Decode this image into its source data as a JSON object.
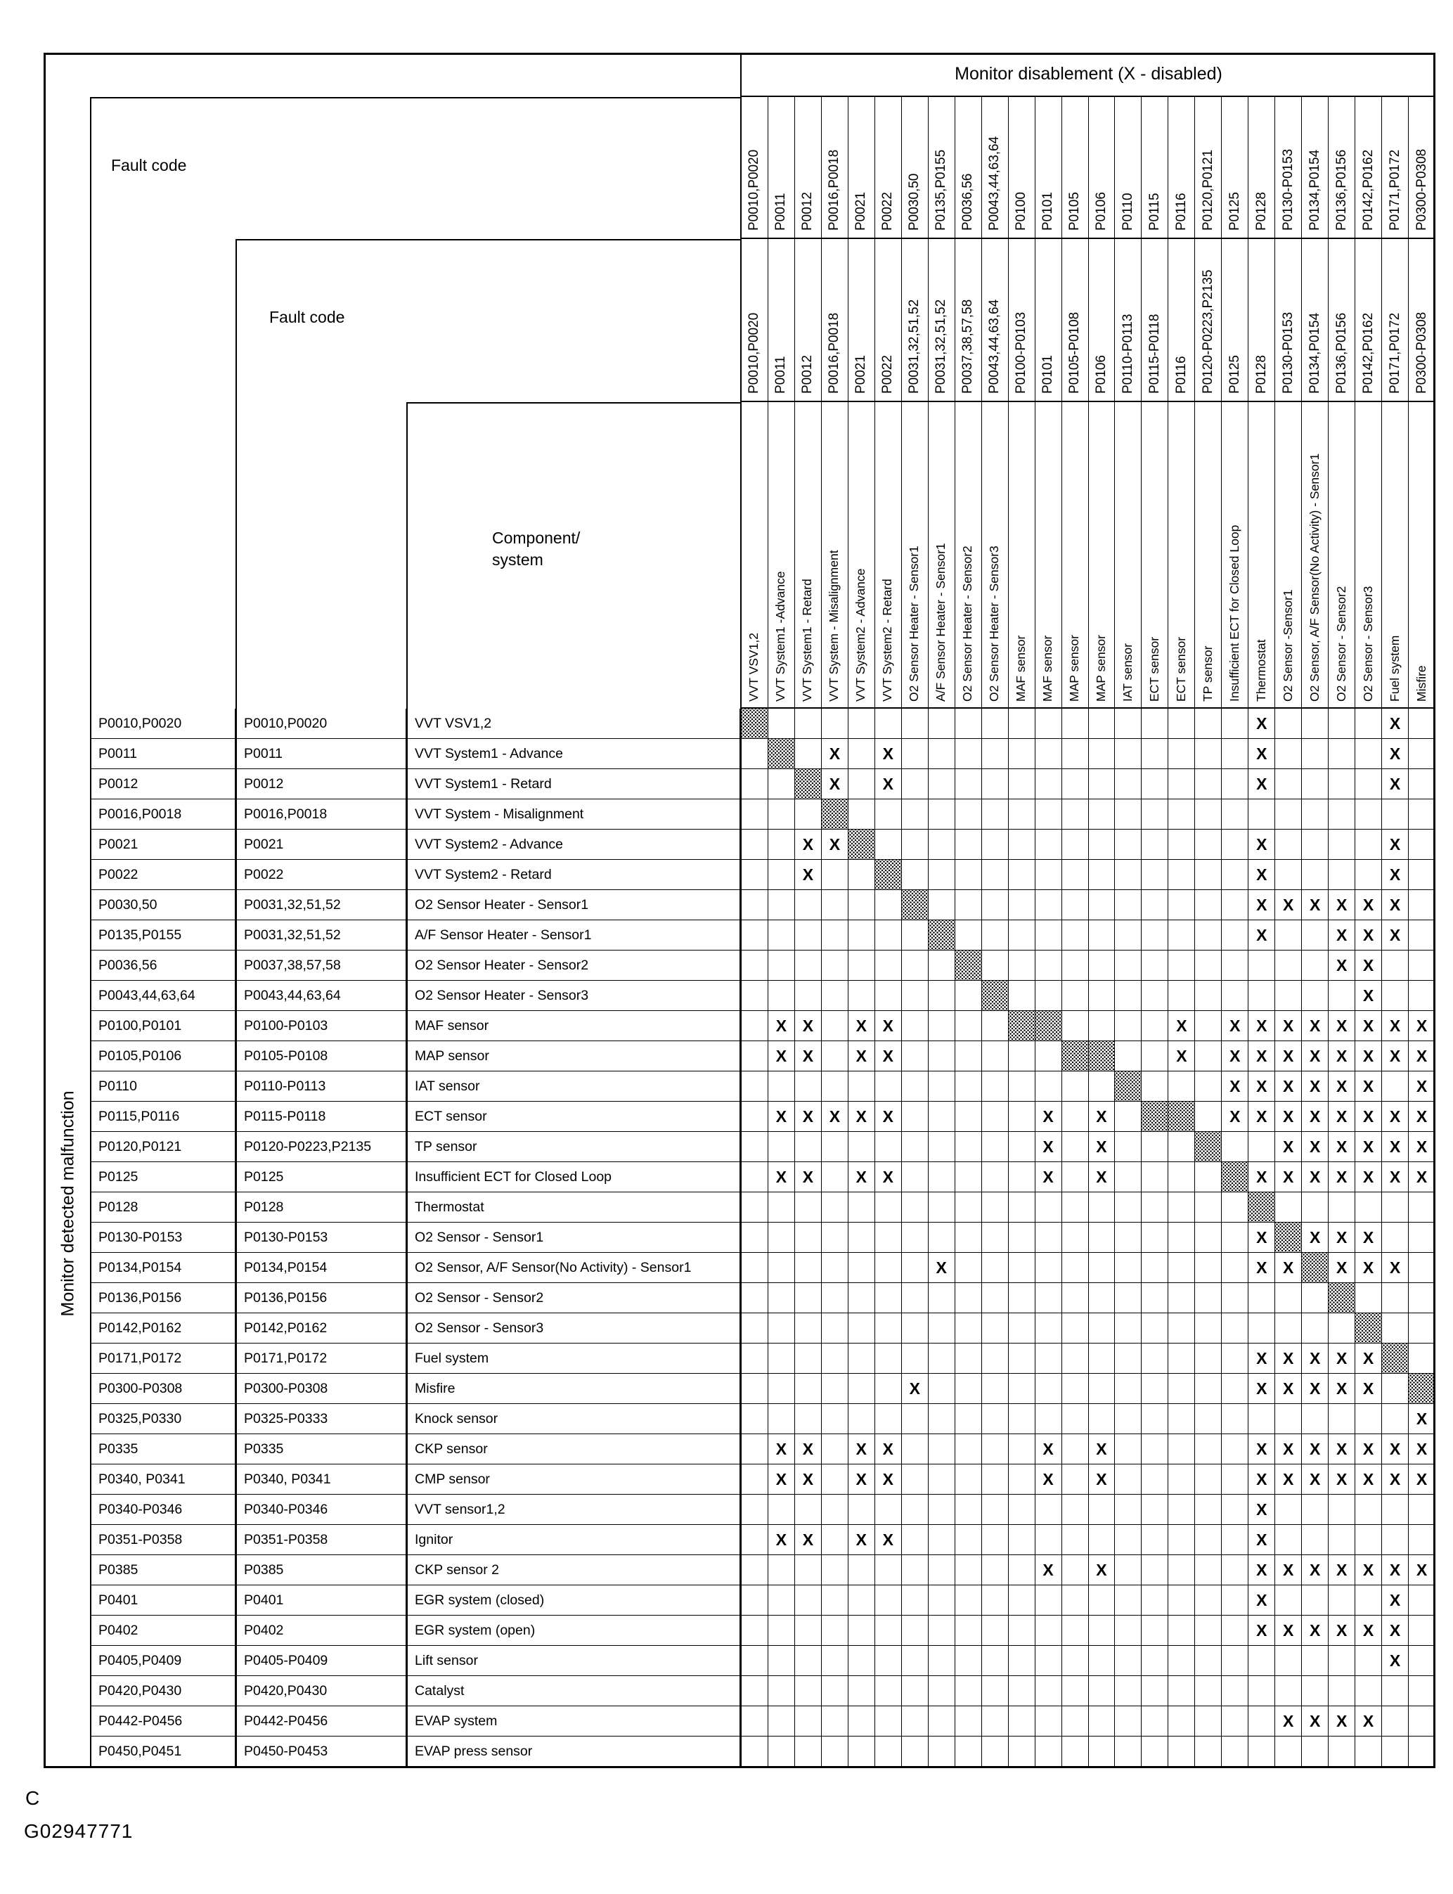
{
  "title": "Monitor disablement (X - disabled)",
  "x_symbol": "X",
  "left_header": {
    "row_axis_label": "Monitor detected malfunction",
    "col1_label": "Fault code",
    "col2_label": "Fault code",
    "col3_label_line1": "Component/",
    "col3_label_line2": "system"
  },
  "footer": {
    "page_letter": "C",
    "figure_code": "G02947771"
  },
  "columns": [
    {
      "code1": "P0010,P0020",
      "code2": "P0010,P0020",
      "component": "VVT VSV1,2"
    },
    {
      "code1": "P0011",
      "code2": "P0011",
      "component": "VVT System1 -Advance"
    },
    {
      "code1": "P0012",
      "code2": "P0012",
      "component": "VVT System1 - Retard"
    },
    {
      "code1": "P0016,P0018",
      "code2": "P0016,P0018",
      "component": "VVT System - Misalignment"
    },
    {
      "code1": "P0021",
      "code2": "P0021",
      "component": "VVT System2 - Advance"
    },
    {
      "code1": "P0022",
      "code2": "P0022",
      "component": "VVT System2 - Retard"
    },
    {
      "code1": "P0030,50",
      "code2": "P0031,32,51,52",
      "component": "O2 Sensor  Heater - Sensor1"
    },
    {
      "code1": "P0135,P0155",
      "code2": "P0031,32,51,52",
      "component": "A/F Sensor Heater - Sensor1"
    },
    {
      "code1": "P0036,56",
      "code2": "P0037,38,57,58",
      "component": "O2 Sensor Heater - Sensor2"
    },
    {
      "code1": "P0043,44,63,64",
      "code2": "P0043,44,63,64",
      "component": "O2 Sensor Heater  - Sensor3"
    },
    {
      "code1": "P0100",
      "code2": "P0100-P0103",
      "component": "MAF sensor"
    },
    {
      "code1": "P0101",
      "code2": "P0101",
      "component": "MAF sensor"
    },
    {
      "code1": "P0105",
      "code2": "P0105-P0108",
      "component": "MAP sensor"
    },
    {
      "code1": "P0106",
      "code2": "P0106",
      "component": "MAP sensor"
    },
    {
      "code1": "P0110",
      "code2": "P0110-P0113",
      "component": "IAT sensor"
    },
    {
      "code1": "P0115",
      "code2": "P0115-P0118",
      "component": "ECT sensor"
    },
    {
      "code1": "P0116",
      "code2": "P0116",
      "component": "ECT sensor"
    },
    {
      "code1": "P0120,P0121",
      "code2": "P0120-P0223,P2135",
      "component": "TP sensor"
    },
    {
      "code1": "P0125",
      "code2": "P0125",
      "component": "Insufficient ECT for Closed Loop"
    },
    {
      "code1": "P0128",
      "code2": "P0128",
      "component": "Thermostat"
    },
    {
      "code1": "P0130-P0153",
      "code2": "P0130-P0153",
      "component": "O2 Sensor -Sensor1"
    },
    {
      "code1": "P0134,P0154",
      "code2": "P0134,P0154",
      "component": "O2 Sensor, A/F Sensor(No Activity) - Sensor1"
    },
    {
      "code1": "P0136,P0156",
      "code2": "P0136,P0156",
      "component": "O2 Sensor - Sensor2"
    },
    {
      "code1": "P0142,P0162",
      "code2": "P0142,P0162",
      "component": "O2 Sensor  - Sensor3"
    },
    {
      "code1": "P0171,P0172",
      "code2": "P0171,P0172",
      "component": "Fuel system"
    },
    {
      "code1": "P0300-P0308",
      "code2": "P0300-P0308",
      "component": "Misfire"
    }
  ],
  "rows": [
    {
      "code1": "P0010,P0020",
      "code2": "P0010,P0020",
      "component": "VVT VSV1,2",
      "disabled_cols": [
        20,
        25
      ],
      "self_cols": [
        1
      ]
    },
    {
      "code1": "P0011",
      "code2": "P0011",
      "component": "VVT System1 - Advance",
      "disabled_cols": [
        4,
        6,
        20,
        25
      ],
      "self_cols": [
        2
      ]
    },
    {
      "code1": "P0012",
      "code2": "P0012",
      "component": "VVT System1 - Retard",
      "disabled_cols": [
        4,
        6,
        20,
        25
      ],
      "self_cols": [
        3
      ]
    },
    {
      "code1": "P0016,P0018",
      "code2": "P0016,P0018",
      "component": "VVT System - Misalignment",
      "disabled_cols": [],
      "self_cols": [
        4
      ]
    },
    {
      "code1": "P0021",
      "code2": "P0021",
      "component": "VVT System2 - Advance",
      "disabled_cols": [
        3,
        4,
        20,
        25
      ],
      "self_cols": [
        5
      ]
    },
    {
      "code1": "P0022",
      "code2": "P0022",
      "component": "VVT System2 - Retard",
      "disabled_cols": [
        3,
        20,
        25
      ],
      "self_cols": [
        6
      ]
    },
    {
      "code1": "P0030,50",
      "code2": "P0031,32,51,52",
      "component": "O2 Sensor Heater - Sensor1",
      "disabled_cols": [
        20,
        21,
        22,
        23,
        24,
        25
      ],
      "self_cols": [
        7
      ]
    },
    {
      "code1": "P0135,P0155",
      "code2": "P0031,32,51,52",
      "component": "A/F Sensor Heater  - Sensor1",
      "disabled_cols": [
        20,
        23,
        24,
        25
      ],
      "self_cols": [
        8
      ]
    },
    {
      "code1": "P0036,56",
      "code2": "P0037,38,57,58",
      "component": "O2 Sensor Heater - Sensor2",
      "disabled_cols": [
        23,
        24
      ],
      "self_cols": [
        9
      ]
    },
    {
      "code1": "P0043,44,63,64",
      "code2": "P0043,44,63,64",
      "component": "O2 Sensor Heater - Sensor3",
      "disabled_cols": [
        24
      ],
      "self_cols": [
        10
      ]
    },
    {
      "code1": "P0100,P0101",
      "code2": "P0100-P0103",
      "component": "MAF sensor",
      "disabled_cols": [
        2,
        3,
        5,
        6,
        17,
        19,
        20,
        21,
        22,
        23,
        24,
        25,
        26
      ],
      "self_cols": [
        11,
        12
      ]
    },
    {
      "code1": "P0105,P0106",
      "code2": "P0105-P0108",
      "component": "MAP sensor",
      "disabled_cols": [
        2,
        3,
        5,
        6,
        17,
        19,
        20,
        21,
        22,
        23,
        24,
        25,
        26
      ],
      "self_cols": [
        13,
        14
      ]
    },
    {
      "code1": "P0110",
      "code2": "P0110-P0113",
      "component": "IAT sensor",
      "disabled_cols": [
        19,
        20,
        21,
        22,
        23,
        24,
        26
      ],
      "self_cols": [
        15
      ]
    },
    {
      "code1": "P0115,P0116",
      "code2": "P0115-P0118",
      "component": "ECT sensor",
      "disabled_cols": [
        2,
        3,
        4,
        5,
        6,
        12,
        14,
        19,
        20,
        21,
        22,
        23,
        24,
        25,
        26
      ],
      "self_cols": [
        16,
        17
      ]
    },
    {
      "code1": "P0120,P0121",
      "code2": "P0120-P0223,P2135",
      "component": "TP sensor",
      "disabled_cols": [
        12,
        14,
        21,
        22,
        23,
        24,
        25,
        26
      ],
      "self_cols": [
        18
      ]
    },
    {
      "code1": "P0125",
      "code2": "P0125",
      "component": "Insufficient ECT for Closed Loop",
      "disabled_cols": [
        2,
        3,
        5,
        6,
        12,
        14,
        20,
        21,
        22,
        23,
        24,
        25,
        26
      ],
      "self_cols": [
        19
      ]
    },
    {
      "code1": "P0128",
      "code2": "P0128",
      "component": "Thermostat",
      "disabled_cols": [],
      "self_cols": [
        20
      ]
    },
    {
      "code1": "P0130-P0153",
      "code2": "P0130-P0153",
      "component": "O2 Sensor - Sensor1",
      "disabled_cols": [
        20,
        22,
        23,
        24
      ],
      "self_cols": [
        21
      ]
    },
    {
      "code1": "P0134,P0154",
      "code2": "P0134,P0154",
      "component": "O2 Sensor, A/F Sensor(No Activity) - Sensor1",
      "disabled_cols": [
        8,
        20,
        21,
        23,
        24,
        25
      ],
      "self_cols": [
        22
      ]
    },
    {
      "code1": "P0136,P0156",
      "code2": "P0136,P0156",
      "component": "O2 Sensor - Sensor2",
      "disabled_cols": [],
      "self_cols": [
        23
      ]
    },
    {
      "code1": "P0142,P0162",
      "code2": "P0142,P0162",
      "component": "O2 Sensor - Sensor3",
      "disabled_cols": [],
      "self_cols": [
        24
      ]
    },
    {
      "code1": "P0171,P0172",
      "code2": "P0171,P0172",
      "component": "Fuel system",
      "disabled_cols": [
        20,
        21,
        22,
        23,
        24
      ],
      "self_cols": [
        25
      ]
    },
    {
      "code1": "P0300-P0308",
      "code2": "P0300-P0308",
      "component": "Misfire",
      "disabled_cols": [
        7,
        20,
        21,
        22,
        23,
        24
      ],
      "self_cols": [
        26
      ]
    },
    {
      "code1": "P0325,P0330",
      "code2": "P0325-P0333",
      "component": "Knock sensor",
      "disabled_cols": [
        26
      ],
      "self_cols": []
    },
    {
      "code1": "P0335",
      "code2": "P0335",
      "component": "CKP sensor",
      "disabled_cols": [
        2,
        3,
        5,
        6,
        12,
        14,
        20,
        21,
        22,
        23,
        24,
        25,
        26
      ],
      "self_cols": []
    },
    {
      "code1": "P0340, P0341",
      "code2": "P0340, P0341",
      "component": "CMP sensor",
      "disabled_cols": [
        2,
        3,
        5,
        6,
        12,
        14,
        20,
        21,
        22,
        23,
        24,
        25,
        26
      ],
      "self_cols": []
    },
    {
      "code1": "P0340-P0346",
      "code2": "P0340-P0346",
      "component": "VVT sensor1,2",
      "disabled_cols": [
        20
      ],
      "self_cols": []
    },
    {
      "code1": "P0351-P0358",
      "code2": "P0351-P0358",
      "component": "Ignitor",
      "disabled_cols": [
        2,
        3,
        5,
        6,
        20
      ],
      "self_cols": []
    },
    {
      "code1": "P0385",
      "code2": "P0385",
      "component": "CKP sensor 2",
      "disabled_cols": [
        12,
        14,
        20,
        21,
        22,
        23,
        24,
        25,
        26
      ],
      "self_cols": []
    },
    {
      "code1": "P0401",
      "code2": "P0401",
      "component": "EGR system (closed)",
      "disabled_cols": [
        20,
        25
      ],
      "self_cols": []
    },
    {
      "code1": "P0402",
      "code2": "P0402",
      "component": "EGR system (open)",
      "disabled_cols": [
        20,
        21,
        22,
        23,
        24,
        25
      ],
      "self_cols": []
    },
    {
      "code1": "P0405,P0409",
      "code2": "P0405-P0409",
      "component": "Lift sensor",
      "disabled_cols": [
        25
      ],
      "self_cols": []
    },
    {
      "code1": "P0420,P0430",
      "code2": "P0420,P0430",
      "component": "Catalyst",
      "disabled_cols": [],
      "self_cols": []
    },
    {
      "code1": "P0442-P0456",
      "code2": "P0442-P0456",
      "component": "EVAP system",
      "disabled_cols": [
        21,
        22,
        23,
        24
      ],
      "self_cols": []
    },
    {
      "code1": "P0450,P0451",
      "code2": "P0450-P0453",
      "component": "EVAP press sensor",
      "disabled_cols": [],
      "self_cols": []
    }
  ]
}
